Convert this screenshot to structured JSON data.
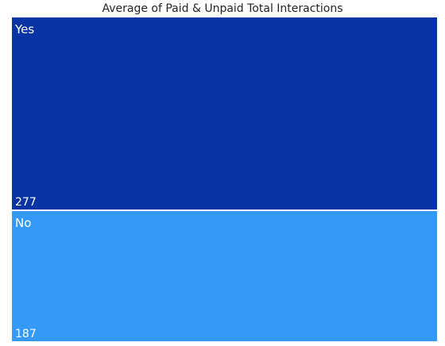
{
  "chart_data": {
    "type": "treemap",
    "title": "Average of Paid & Unpaid Total Interactions",
    "categories": [
      "Yes",
      "No"
    ],
    "values": [
      277,
      187
    ],
    "colors": [
      "#0833A2",
      "#3599F8"
    ],
    "legend": "none"
  }
}
